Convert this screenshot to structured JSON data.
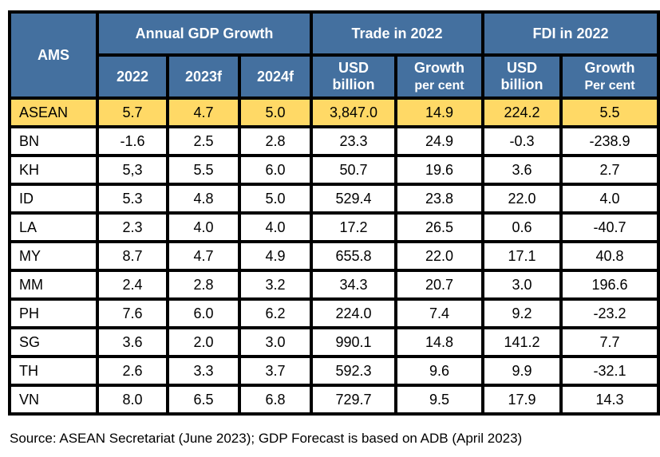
{
  "colors": {
    "header_bg": "#44709f",
    "header_text": "#ffffff",
    "highlight_row": "#ffd966",
    "border": "#000000"
  },
  "chart_data": {
    "type": "table",
    "header_groups": [
      {
        "label": "AMS"
      },
      {
        "label": "Annual GDP Growth"
      },
      {
        "label": "Trade in 2022"
      },
      {
        "label": "FDI in 2022"
      }
    ],
    "columns": [
      {
        "line1": "2022",
        "line2": ""
      },
      {
        "line1": "2023f",
        "line2": ""
      },
      {
        "line1": "2024f",
        "line2": ""
      },
      {
        "line1": "USD",
        "line2": "billion"
      },
      {
        "line1": "Growth",
        "line2": "per cent"
      },
      {
        "line1": "USD",
        "line2": "billion"
      },
      {
        "line1": "Growth",
        "line2": "Per cent"
      }
    ],
    "rows": [
      {
        "name": "ASEAN",
        "values": [
          "5.7",
          "4.7",
          "5.0",
          "3,847.0",
          "14.9",
          "224.2",
          "5.5"
        ],
        "highlight": true
      },
      {
        "name": "BN",
        "values": [
          "-1.6",
          "2.5",
          "2.8",
          "23.3",
          "24.9",
          "-0.3",
          "-238.9"
        ]
      },
      {
        "name": "KH",
        "values": [
          "5,3",
          "5.5",
          "6.0",
          "50.7",
          "19.6",
          "3.6",
          "2.7"
        ]
      },
      {
        "name": "ID",
        "values": [
          "5.3",
          "4.8",
          "5.0",
          "529.4",
          "23.8",
          "22.0",
          "4.0"
        ]
      },
      {
        "name": "LA",
        "values": [
          "2.3",
          "4.0",
          "4.0",
          "17.2",
          "26.5",
          "0.6",
          "-40.7"
        ]
      },
      {
        "name": "MY",
        "values": [
          "8.7",
          "4.7",
          "4.9",
          "655.8",
          "22.0",
          "17.1",
          "40.8"
        ]
      },
      {
        "name": "MM",
        "values": [
          "2.4",
          "2.8",
          "3.2",
          "34.3",
          "20.7",
          "3.0",
          "196.6"
        ]
      },
      {
        "name": "PH",
        "values": [
          "7.6",
          "6.0",
          "6.2",
          "224.0",
          "7.4",
          "9.2",
          "-23.2"
        ]
      },
      {
        "name": "SG",
        "values": [
          "3.6",
          "2.0",
          "3.0",
          "990.1",
          "14.8",
          "141.2",
          "7.7"
        ]
      },
      {
        "name": "TH",
        "values": [
          "2.6",
          "3.3",
          "3.7",
          "592.3",
          "9.6",
          "9.9",
          "-32.1"
        ]
      },
      {
        "name": "VN",
        "values": [
          "8.0",
          "6.5",
          "6.8",
          "729.7",
          "9.5",
          "17.9",
          "14.3"
        ]
      }
    ]
  },
  "source": "Source: ASEAN Secretariat (June 2023); GDP Forecast is based on ADB (April 2023)"
}
